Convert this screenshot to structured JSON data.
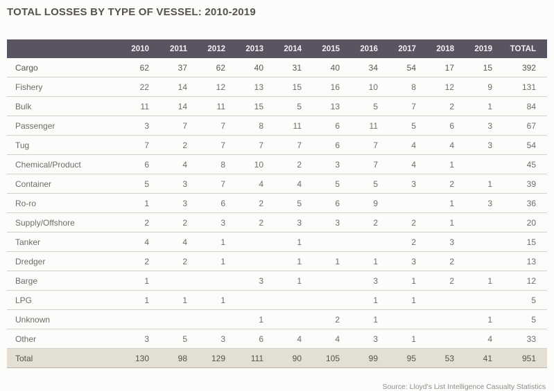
{
  "title": "TOTAL LOSSES BY TYPE OF VESSEL: 2010-2019",
  "footer_note": "Source: Lloyd's List Intelligence Casualty Statistics",
  "colors": {
    "title_text": "#57524f",
    "header_bg": "#5a5462",
    "header_text": "#f2f0f3",
    "total_row_bg": "#e3dfd3",
    "body_text": "#6e6b68"
  },
  "chart_data": {
    "type": "table",
    "title": "TOTAL LOSSES BY TYPE OF VESSEL: 2010-2019",
    "columns": [
      "",
      "2010",
      "2011",
      "2012",
      "2013",
      "2014",
      "2015",
      "2016",
      "2017",
      "2018",
      "2019",
      "TOTAL"
    ],
    "rows": [
      {
        "label": "Cargo",
        "bold": true,
        "total_row": false,
        "values": [
          "62",
          "37",
          "62",
          "40",
          "31",
          "40",
          "34",
          "54",
          "17",
          "15",
          "392"
        ]
      },
      {
        "label": "Fishery",
        "bold": false,
        "total_row": false,
        "values": [
          "22",
          "14",
          "12",
          "13",
          "15",
          "16",
          "10",
          "8",
          "12",
          "9",
          "131"
        ]
      },
      {
        "label": "Bulk",
        "bold": false,
        "total_row": false,
        "values": [
          "11",
          "14",
          "11",
          "15",
          "5",
          "13",
          "5",
          "7",
          "2",
          "1",
          "84"
        ]
      },
      {
        "label": "Passenger",
        "bold": false,
        "total_row": false,
        "values": [
          "3",
          "7",
          "7",
          "8",
          "11",
          "6",
          "11",
          "5",
          "6",
          "3",
          "67"
        ]
      },
      {
        "label": "Tug",
        "bold": false,
        "total_row": false,
        "values": [
          "7",
          "2",
          "7",
          "7",
          "7",
          "6",
          "7",
          "4",
          "4",
          "3",
          "54"
        ]
      },
      {
        "label": "Chemical/Product",
        "bold": false,
        "total_row": false,
        "values": [
          "6",
          "4",
          "8",
          "10",
          "2",
          "3",
          "7",
          "4",
          "1",
          "",
          "45"
        ]
      },
      {
        "label": "Container",
        "bold": false,
        "total_row": false,
        "values": [
          "5",
          "3",
          "7",
          "4",
          "4",
          "5",
          "5",
          "3",
          "2",
          "1",
          "39"
        ]
      },
      {
        "label": "Ro-ro",
        "bold": false,
        "total_row": false,
        "values": [
          "1",
          "3",
          "6",
          "2",
          "5",
          "6",
          "9",
          "",
          "1",
          "3",
          "36"
        ]
      },
      {
        "label": "Supply/Offshore",
        "bold": false,
        "total_row": false,
        "values": [
          "2",
          "2",
          "3",
          "2",
          "3",
          "3",
          "2",
          "2",
          "1",
          "",
          "20"
        ]
      },
      {
        "label": "Tanker",
        "bold": false,
        "total_row": false,
        "values": [
          "4",
          "4",
          "1",
          "",
          "1",
          "",
          "",
          "2",
          "3",
          "",
          "15"
        ]
      },
      {
        "label": "Dredger",
        "bold": false,
        "total_row": false,
        "values": [
          "2",
          "2",
          "1",
          "",
          "1",
          "1",
          "1",
          "3",
          "2",
          "",
          "13"
        ]
      },
      {
        "label": "Barge",
        "bold": false,
        "total_row": false,
        "values": [
          "1",
          "",
          "",
          "3",
          "1",
          "",
          "3",
          "1",
          "2",
          "1",
          "12"
        ]
      },
      {
        "label": "LPG",
        "bold": false,
        "total_row": false,
        "values": [
          "1",
          "1",
          "1",
          "",
          "",
          "",
          "1",
          "1",
          "",
          "",
          "5"
        ]
      },
      {
        "label": "Unknown",
        "bold": false,
        "total_row": false,
        "values": [
          "",
          "",
          "",
          "1",
          "",
          "2",
          "1",
          "",
          "",
          "1",
          "5"
        ]
      },
      {
        "label": "Other",
        "bold": false,
        "total_row": false,
        "values": [
          "3",
          "5",
          "3",
          "6",
          "4",
          "4",
          "3",
          "1",
          "",
          "4",
          "33"
        ]
      },
      {
        "label": "Total",
        "bold": true,
        "total_row": true,
        "values": [
          "130",
          "98",
          "129",
          "111",
          "90",
          "105",
          "99",
          "95",
          "53",
          "41",
          "951"
        ]
      }
    ]
  }
}
